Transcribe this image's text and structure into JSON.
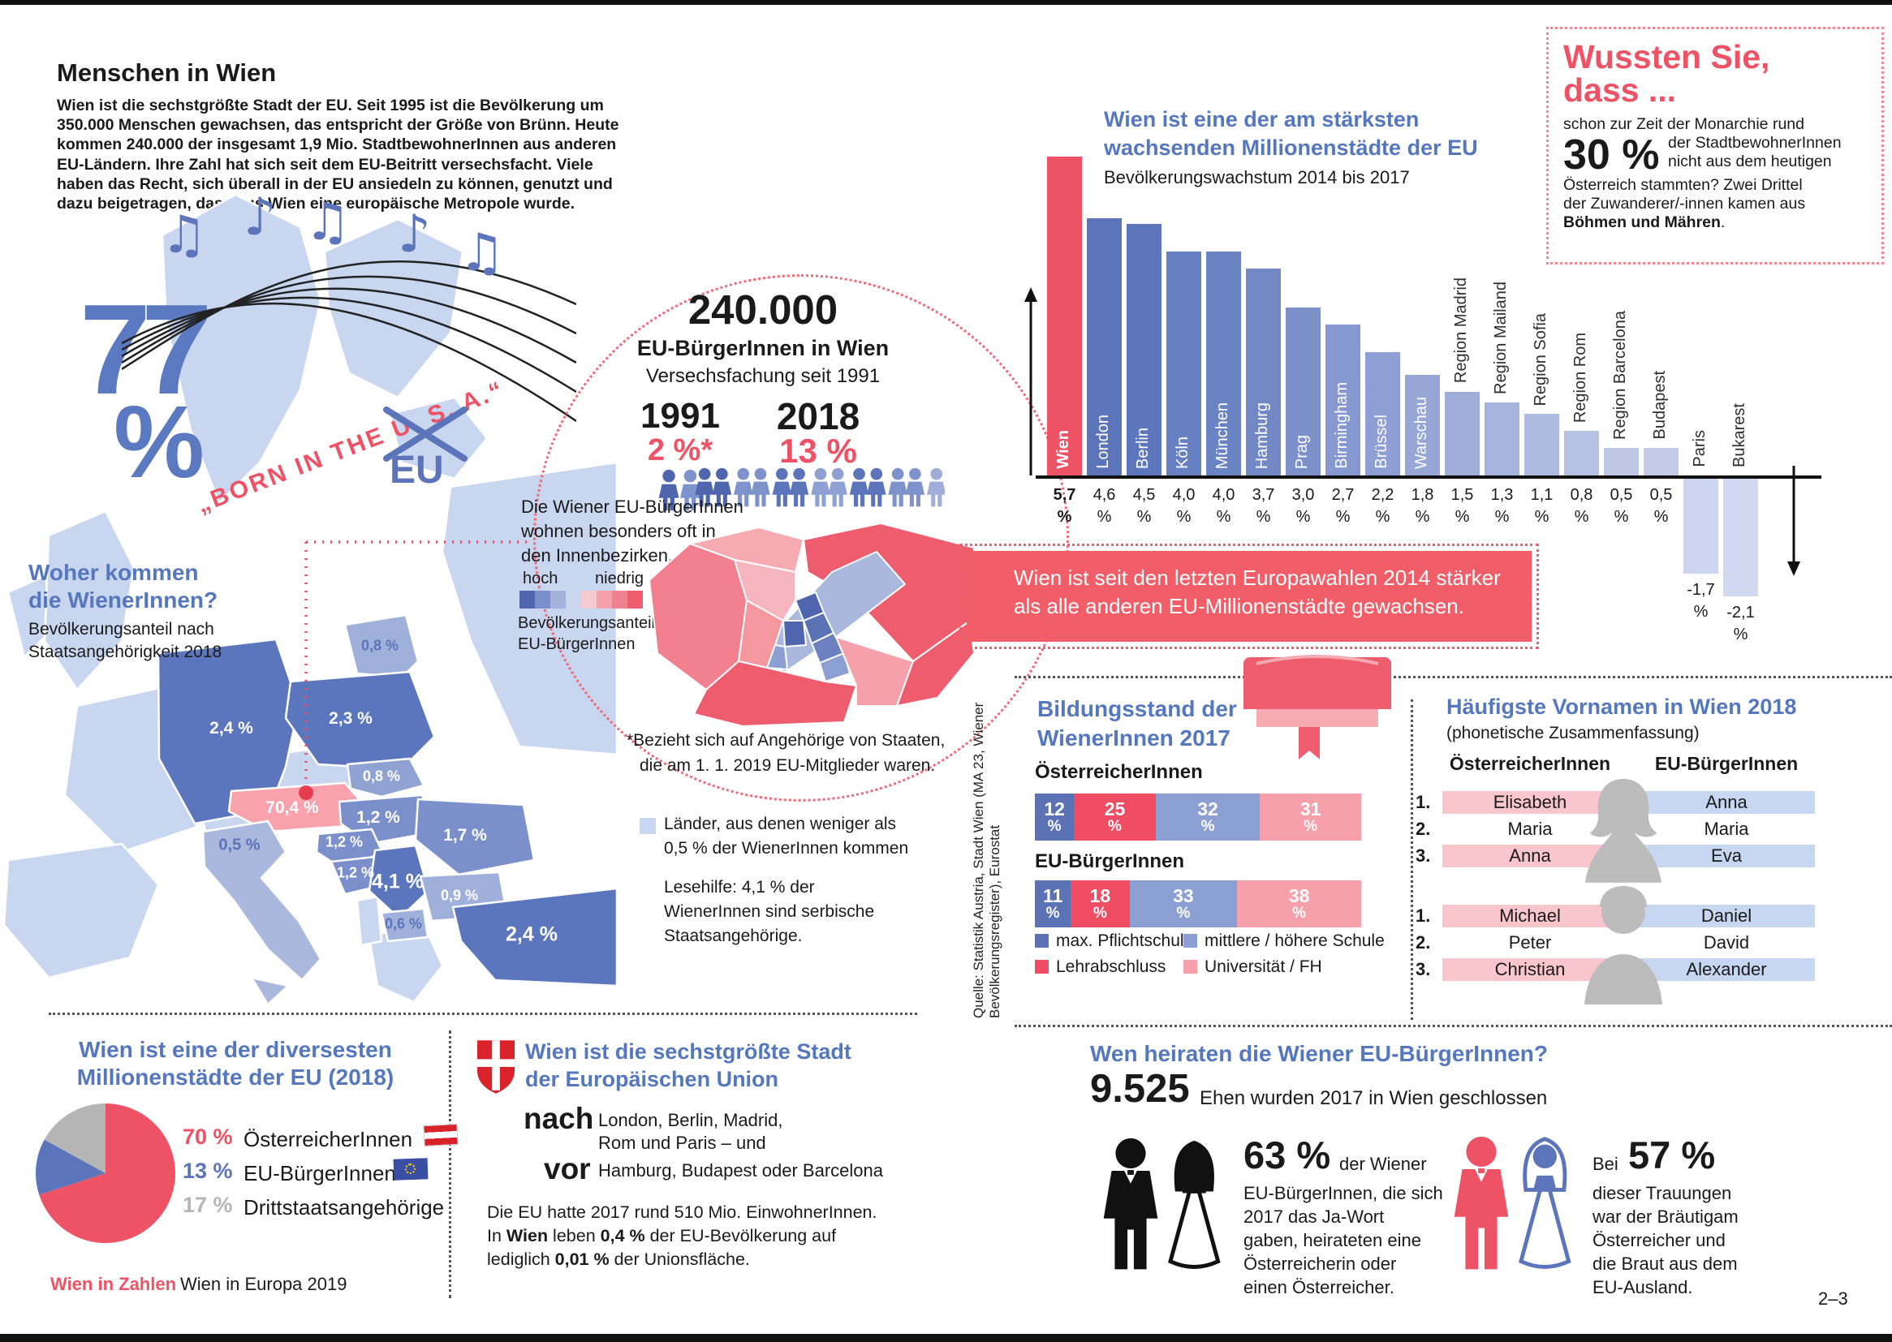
{
  "header": {
    "title": "Menschen in Wien",
    "intro": "Wien ist die sechstgrößte Stadt der EU. Seit 1995 ist die Bevölkerung um 350.000 Menschen gewachsen, das entspricht der Größe von Brünn. Heute kommen 240.000 der insgesamt 1,9 Mio. StadtbewohnerInnen aus anderen EU-Ländern. Ihre Zahl hat sich seit dem EU-Beitritt versechsfacht. Viele haben das Recht, sich überall in der EU ansiedeln zu können, genutzt und dazu beigetragen, dass aus Wien eine europäische Metropole wurde."
  },
  "big_percent": {
    "value": "77",
    "unit": "%"
  },
  "music": {
    "lyric": "„BORN IN THE U. S. A.“",
    "replacement": "EU"
  },
  "origin": {
    "heading": [
      "Woher kommen",
      "die WienerInnen?"
    ],
    "subheading": [
      "Bevölkerungsanteil nach",
      "Staatsangehörigkeit 2018"
    ],
    "note_less": [
      "Länder, aus denen weniger als",
      "0,5 % der WienerInnen kommen"
    ],
    "reading_aid": [
      "Lesehilfe: 4,1 % der",
      "WienerInnen sind serbische",
      "Staatsangehörige."
    ]
  },
  "circle": {
    "big": "240.000",
    "line1": "EU-BürgerInnen in Wien",
    "line2": "Versechsfachung seit 1991",
    "left_year": "1991",
    "left_value": "2 %*",
    "right_year": "2018",
    "right_value": "13 %",
    "note": [
      "Die Wiener EU-BürgerInnen",
      "wohnen besonders oft in",
      "den Innenbezirken."
    ],
    "legend_high": "hoch",
    "legend_low": "niedrig",
    "legend_caption": [
      "Bevölkerungsanteil",
      "EU-BürgerInnen"
    ],
    "footnote": [
      "*Bezieht sich auf Angehörige von Staaten,",
      "die am 1. 1. 2019 EU-Mitglieder waren."
    ]
  },
  "growth_banner": [
    "Wien ist seit den letzten Europawahlen 2014 stärker",
    "als alle anderen EU-Millionenstädte gewachsen."
  ],
  "didyouknow": {
    "title": [
      "Wussten Sie,",
      "dass ..."
    ],
    "intro": "schon zur Zeit der Monarchie rund",
    "big": "30 %",
    "beside": [
      "der StadtbewohnerInnen",
      "nicht aus dem heutigen"
    ],
    "rest": [
      "Österreich stammten? Zwei Drittel",
      "der Zuwanderer/-innen kamen aus"
    ],
    "bold_end": "Böhmen und Mähren",
    "period": "."
  },
  "education": {
    "heading": [
      "Bildungsstand der",
      "WienerInnen 2017"
    ],
    "legend": [
      {
        "label": "max. Pflichtschule",
        "color": "#5b72b5"
      },
      {
        "label": "Lehrabschluss",
        "color": "#ee4d64"
      },
      {
        "label": "mittlere / höhere Schule",
        "color": "#8c9fd3"
      },
      {
        "label": "Universität / FH",
        "color": "#f5a0ab"
      }
    ]
  },
  "names": {
    "heading": "Häufigste Vornamen in Wien 2018",
    "subheading": "(phonetische Zusammenfassung)",
    "col_left": "ÖsterreicherInnen",
    "col_right": "EU-BürgerInnen",
    "ranks": [
      "1.",
      "2.",
      "3."
    ],
    "female": [
      [
        "Elisabeth",
        "Anna"
      ],
      [
        "Maria",
        "Maria"
      ],
      [
        "Anna",
        "Eva"
      ]
    ],
    "male": [
      [
        "Michael",
        "Daniel"
      ],
      [
        "Peter",
        "David"
      ],
      [
        "Christian",
        "Alexander"
      ]
    ]
  },
  "diversity": {
    "heading": [
      "Wien ist eine der diversesten",
      "Millionenstädte der EU (2018)"
    ]
  },
  "sixth": {
    "heading": [
      "Wien ist die sechstgrößte Stadt",
      "der Europäischen Union"
    ],
    "nach": "nach",
    "nach_lines": [
      "London, Berlin, Madrid,",
      "Rom und Paris – und"
    ],
    "vor": "vor",
    "vor_line": "Hamburg, Budapest oder Barcelona",
    "body1": "Die EU hatte 2017 rund 510 Mio. EinwohnerInnen.",
    "body2_pre": "In ",
    "body2_b1": "Wien",
    "body2_mid": " leben ",
    "body2_b2": "0,4 %",
    "body2_post": " der EU-Bevölkerung auf",
    "body3_pre": "lediglich ",
    "body3_b": "0,01 %",
    "body3_post": " der Unionsfläche."
  },
  "marriage": {
    "heading": "Wen heiraten die Wiener EU-BürgerInnen?",
    "big": "9.525",
    "big_suffix": "Ehen wurden 2017 in Wien geschlossen",
    "left_pct": "63 %",
    "left_beside": "der Wiener",
    "left_lines": [
      "EU-BürgerInnen, die sich",
      "2017 das Ja-Wort",
      "gaben, heirateten eine",
      "Österreicherin oder",
      "einen Österreicher."
    ],
    "right_pre": "Bei",
    "right_pct": "57 %",
    "right_lines": [
      "dieser Trauungen",
      "war der Bräutigam",
      "Österreicher und",
      "die Braut aus dem",
      "EU-Ausland."
    ]
  },
  "footer": {
    "brand": "Wien in Zahlen",
    "title": "Wien in Europa 2019",
    "page": "2–3",
    "source": "Quelle: Statistik Austria, Stadt Wien (MA 23, Wiener Bevölkerungsregister), Eurostat"
  },
  "chart_data": [
    {
      "id": "growth",
      "type": "bar",
      "title": "Wien ist eine der am stärksten wachsenden Millionenstädte der EU",
      "subtitle": "Bevölkerungswachstum 2014 bis 2017",
      "unit": "%",
      "ylim": [
        -2.5,
        6
      ],
      "grid": false,
      "bars": [
        {
          "city": "Wien",
          "label": "5,7",
          "value": 5.7,
          "color": "#ee5365",
          "pos": "in",
          "highlight": true
        },
        {
          "city": "London",
          "label": "4,6",
          "value": 4.6,
          "color": "#5b74ba",
          "pos": "in"
        },
        {
          "city": "Berlin",
          "label": "4,5",
          "value": 4.5,
          "color": "#5e77bc",
          "pos": "in"
        },
        {
          "city": "Köln",
          "label": "4,0",
          "value": 4.0,
          "color": "#6680c1",
          "pos": "in"
        },
        {
          "city": "München",
          "label": "4,0",
          "value": 4.0,
          "color": "#6a83c2",
          "pos": "in"
        },
        {
          "city": "Hamburg",
          "label": "3,7",
          "value": 3.7,
          "color": "#7289c6",
          "pos": "in"
        },
        {
          "city": "Prag",
          "label": "3,0",
          "value": 3.0,
          "color": "#7c91ca",
          "pos": "in"
        },
        {
          "city": "Birmingham",
          "label": "2,7",
          "value": 2.7,
          "color": "#8598cf",
          "pos": "in"
        },
        {
          "city": "Brüssel",
          "label": "2,2",
          "value": 2.2,
          "color": "#8d9fd3",
          "pos": "in"
        },
        {
          "city": "Warschau",
          "label": "1,8",
          "value": 1.8,
          "color": "#96a7d6",
          "pos": "in"
        },
        {
          "city": "Region Madrid",
          "label": "1,5",
          "value": 1.5,
          "color": "#9eadda",
          "pos": "above"
        },
        {
          "city": "Region Mailand",
          "label": "1,3",
          "value": 1.3,
          "color": "#a6b4dd",
          "pos": "above"
        },
        {
          "city": "Region Sofia",
          "label": "1,1",
          "value": 1.1,
          "color": "#aebae0",
          "pos": "above"
        },
        {
          "city": "Region Rom",
          "label": "0,8",
          "value": 0.8,
          "color": "#b6c1e3",
          "pos": "above"
        },
        {
          "city": "Region Barcelona",
          "label": "0,5",
          "value": 0.5,
          "color": "#bec7e6",
          "pos": "above"
        },
        {
          "city": "Budapest",
          "label": "0,5",
          "value": 0.5,
          "color": "#c3cbe8",
          "pos": "above"
        },
        {
          "city": "Paris",
          "label": "-1,7",
          "value": -1.7,
          "color": "#cdd4ee",
          "pos": "neg"
        },
        {
          "city": "Bukarest",
          "label": "-2,1",
          "value": -2.1,
          "color": "#d2d8f0",
          "pos": "neg"
        }
      ]
    },
    {
      "id": "education",
      "type": "bar",
      "title": "Bildungsstand der WienerInnen 2017",
      "categories": [
        "max. Pflichtschule",
        "Lehrabschluss",
        "mittlere / höhere Schule",
        "Universität / FH"
      ],
      "series": [
        {
          "name": "ÖsterreicherInnen",
          "values": [
            12,
            25,
            32,
            31
          ]
        },
        {
          "name": "EU-BürgerInnen",
          "values": [
            11,
            18,
            33,
            38
          ]
        }
      ],
      "unit": "%",
      "stacked": true
    },
    {
      "id": "diversity",
      "type": "pie",
      "title": "Wien ist eine der diversesten Millionenstädte der EU (2018)",
      "slices": [
        {
          "label": "ÖsterreicherInnen",
          "value": 70,
          "pct": "70 %",
          "color": "#ee5365"
        },
        {
          "label": "EU-BürgerInnen",
          "value": 13,
          "pct": "13 %",
          "color": "#5b74ba"
        },
        {
          "label": "Drittstaatsangehörige",
          "value": 17,
          "pct": "17 %",
          "color": "#b5b5b5"
        }
      ]
    },
    {
      "id": "origin-map",
      "type": "heatmap",
      "title": "Woher kommen die WienerInnen? Bevölkerungsanteil nach Staatsangehörigkeit 2018",
      "points": [
        {
          "country": "Dänemark",
          "label": "0,8 %",
          "value": 0.8,
          "x": 468,
          "y": 566,
          "s": "bs"
        },
        {
          "country": "Deutschland",
          "label": "2,4 %",
          "value": 2.4,
          "x": 285,
          "y": 668,
          "s": "w"
        },
        {
          "country": "Polen",
          "label": "2,3 %",
          "value": 2.3,
          "x": 432,
          "y": 656,
          "s": "w"
        },
        {
          "country": "Slowakei",
          "label": "0,8 %",
          "value": 0.8,
          "x": 470,
          "y": 727,
          "s": "ws"
        },
        {
          "country": "Österreich",
          "label": "70,4 %",
          "value": 70.4,
          "x": 360,
          "y": 766,
          "s": "w"
        },
        {
          "country": "Ungarn",
          "label": "1,2 %",
          "value": 1.2,
          "x": 466,
          "y": 778,
          "s": "w"
        },
        {
          "country": "Rumänien",
          "label": "1,7 %",
          "value": 1.7,
          "x": 573,
          "y": 800,
          "s": "w"
        },
        {
          "country": "Italien",
          "label": "0,5 %",
          "value": 0.5,
          "x": 295,
          "y": 812,
          "s": "b"
        },
        {
          "country": "Kroatien",
          "label": "1,2 %",
          "value": 1.2,
          "x": 424,
          "y": 808,
          "s": "ws"
        },
        {
          "country": "Bosnien-Herzegowina",
          "label": "1,2 %",
          "value": 1.2,
          "x": 438,
          "y": 846,
          "s": "ws"
        },
        {
          "country": "Serbien",
          "label": "4,1 %",
          "value": 4.1,
          "x": 490,
          "y": 857,
          "s": "wb"
        },
        {
          "country": "Bulgarien",
          "label": "0,9 %",
          "value": 0.9,
          "x": 566,
          "y": 874,
          "s": "ws"
        },
        {
          "country": "Nordmazedonien",
          "label": "0,6 %",
          "value": 0.6,
          "x": 497,
          "y": 909,
          "s": "bs"
        },
        {
          "country": "Türkei",
          "label": "2,4 %",
          "value": 2.4,
          "x": 655,
          "y": 922,
          "s": "wb"
        }
      ]
    },
    {
      "id": "eu-citizens",
      "type": "bar",
      "title": "240.000 EU-BürgerInnen in Wien – Versechsfachung seit 1991",
      "categories": [
        "1991",
        "2018"
      ],
      "values": [
        2,
        13
      ],
      "unit": "%"
    }
  ]
}
